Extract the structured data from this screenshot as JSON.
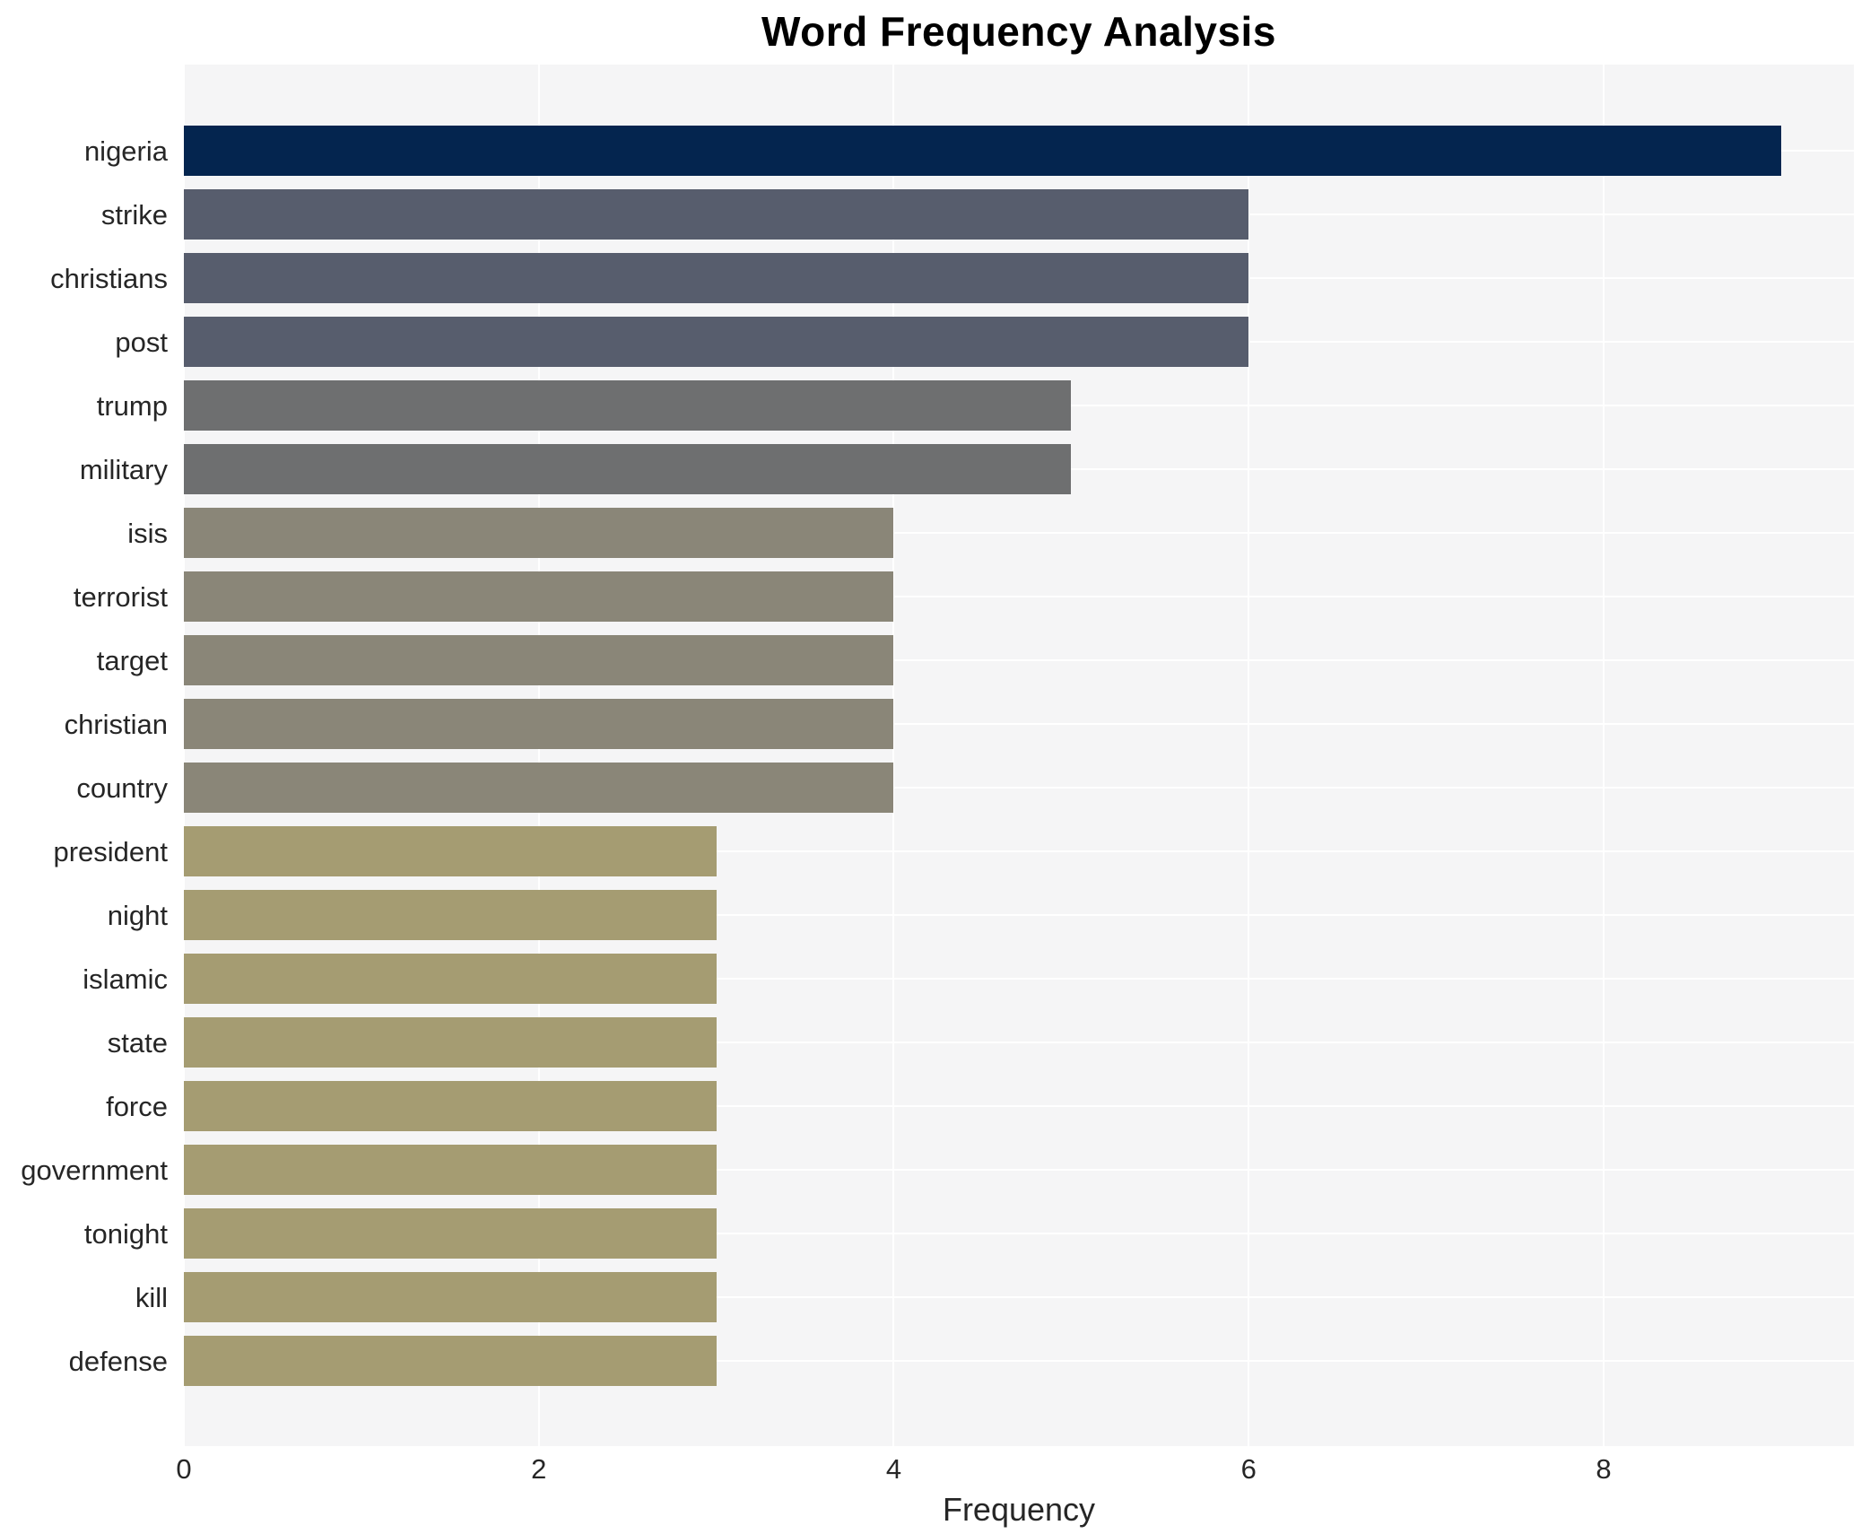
{
  "chart_data": {
    "type": "bar",
    "orientation": "horizontal",
    "title": "Word Frequency Analysis",
    "xlabel": "Frequency",
    "ylabel": "",
    "categories": [
      "nigeria",
      "strike",
      "christians",
      "post",
      "trump",
      "military",
      "isis",
      "terrorist",
      "target",
      "christian",
      "country",
      "president",
      "night",
      "islamic",
      "state",
      "force",
      "government",
      "tonight",
      "kill",
      "defense"
    ],
    "values": [
      9,
      6,
      6,
      6,
      5,
      5,
      4,
      4,
      4,
      4,
      4,
      3,
      3,
      3,
      3,
      3,
      3,
      3,
      3,
      3
    ],
    "bar_colors": [
      "#04254f",
      "#575d6d",
      "#575d6d",
      "#575d6d",
      "#6e6f70",
      "#6e6f70",
      "#8a8678",
      "#8a8678",
      "#8a8678",
      "#8a8678",
      "#8a8678",
      "#a59c72",
      "#a59c72",
      "#a59c72",
      "#a59c72",
      "#a59c72",
      "#a59c72",
      "#a59c72",
      "#a59c72",
      "#a59c72"
    ],
    "xticks": [
      0,
      2,
      4,
      6,
      8
    ],
    "xlim": [
      0,
      9.41
    ],
    "grid": "white gridlines at x-ticks and category centers on light gray plot background",
    "legend_position": "none",
    "colors": {
      "figure_background": "#ffffff",
      "plot_background": "#f5f5f6",
      "grid": "#ffffff",
      "text": "#262626",
      "title": "#000000"
    }
  }
}
